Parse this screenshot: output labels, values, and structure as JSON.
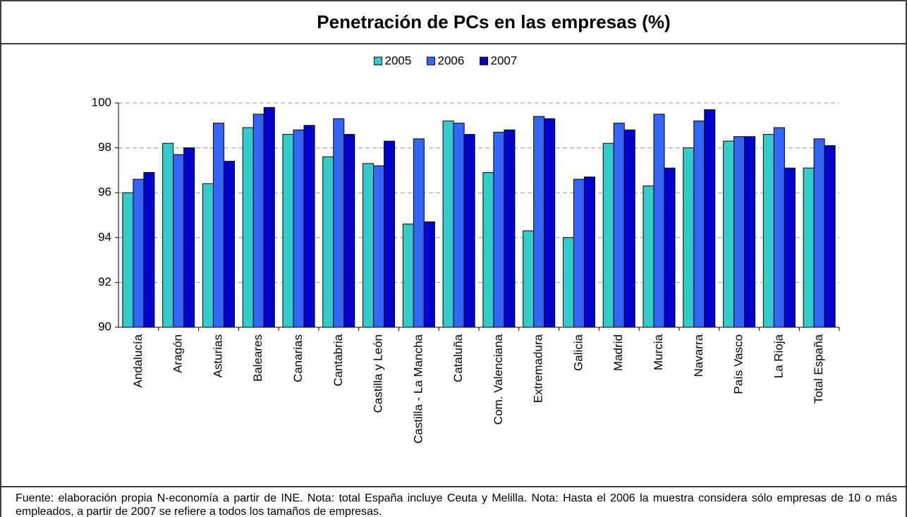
{
  "chart_data": {
    "type": "bar",
    "title": "Penetración de PCs en las empresas (%)",
    "categories": [
      "Andalucía",
      "Aragón",
      "Asturias",
      "Baleares",
      "Canarias",
      "Cantabria",
      "Castilla y León",
      "Castilla - La Mancha",
      "Cataluña",
      "Com. Valenciana",
      "Extremadura",
      "Galicia",
      "Madrid",
      "Murcia",
      "Navarra",
      "País Vasco",
      "La Rioja",
      "Total España"
    ],
    "series": [
      {
        "name": "2005",
        "color": "#33cccc",
        "values": [
          96.0,
          98.2,
          96.4,
          98.9,
          98.6,
          97.6,
          97.3,
          94.6,
          99.2,
          96.9,
          94.3,
          94.0,
          98.2,
          96.3,
          98.0,
          98.3,
          98.6,
          97.1
        ]
      },
      {
        "name": "2006",
        "color": "#3366ff",
        "values": [
          96.6,
          97.7,
          99.1,
          99.5,
          98.8,
          99.3,
          97.2,
          98.4,
          99.1,
          98.7,
          99.4,
          96.6,
          99.1,
          99.5,
          99.2,
          98.5,
          98.9,
          98.4
        ]
      },
      {
        "name": "2007",
        "color": "#0000cc",
        "values": [
          96.9,
          98.0,
          97.4,
          99.8,
          99.0,
          98.6,
          98.3,
          94.7,
          98.6,
          98.8,
          99.3,
          96.7,
          98.8,
          97.1,
          99.7,
          98.5,
          97.1,
          98.1
        ]
      }
    ],
    "ylim": [
      90,
      100
    ],
    "yticks": [
      90,
      92,
      94,
      96,
      98,
      100
    ],
    "grid": true,
    "legend": "top",
    "footnote": "Fuente: elaboración propia N-economía a partir de INE. Nota: total España incluye Ceuta y Melilla. Nota: Hasta el 2006 la muestra considera sólo empresas de 10 o más empleados, a partir de 2007 se refiere a todos los tamaños de empresas."
  }
}
